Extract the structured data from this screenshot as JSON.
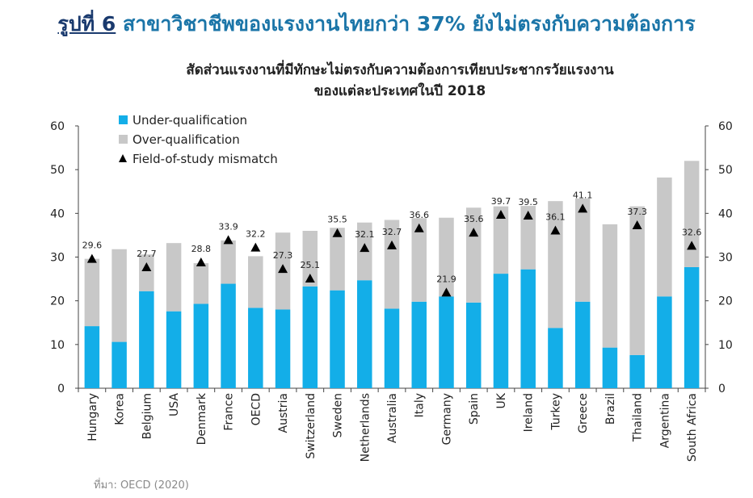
{
  "figure": {
    "label": "รูปที่ 6",
    "title": "สาขาวิชาชีพของแรงงานไทยกว่า 37% ยังไม่ตรงกับความต้องการ",
    "source": "ที่มา: OECD (2020)"
  },
  "chart_data": {
    "type": "bar",
    "stacked": true,
    "title_line1": "สัดส่วนแรงงานที่มีทักษะไม่ตรงกับความต้องการเทียบประชากรวัยแรงงาน",
    "title_line2": "ของแต่ละประเทศในปี 2018",
    "categories": [
      "Hungary",
      "Korea",
      "Belgium",
      "USA",
      "Denmark",
      "France",
      "OECD",
      "Austria",
      "Switzerland",
      "Sweden",
      "Netherlands",
      "Australia",
      "Italy",
      "Germany",
      "Spain",
      "UK",
      "Ireland",
      "Turkey",
      "Greece",
      "Brazil",
      "Thailand",
      "Argentina",
      "South Africa"
    ],
    "series": [
      {
        "name": "Under-qualification",
        "type": "bar",
        "color": "#13aee8",
        "values": [
          14.2,
          10.6,
          22.2,
          17.6,
          19.3,
          23.9,
          18.4,
          18.0,
          23.3,
          22.4,
          24.7,
          18.2,
          19.8,
          21.0,
          19.6,
          26.2,
          27.2,
          13.8,
          19.8,
          9.3,
          7.6,
          21.0,
          27.7
        ]
      },
      {
        "name": "Over-qualification",
        "type": "bar",
        "color": "#c8c8c8",
        "values": [
          15.4,
          21.2,
          8.4,
          15.6,
          9.3,
          9.9,
          11.8,
          17.6,
          12.7,
          14.3,
          13.2,
          20.3,
          19.1,
          18.0,
          21.7,
          15.4,
          14.5,
          29.0,
          23.6,
          28.2,
          34.0,
          27.2,
          24.3
        ]
      },
      {
        "name": "Field-of-study mismatch",
        "type": "scatter",
        "marker": "triangle",
        "values": [
          29.6,
          null,
          27.7,
          null,
          28.8,
          33.9,
          32.2,
          27.3,
          25.1,
          35.5,
          32.1,
          32.7,
          36.6,
          21.9,
          35.6,
          39.7,
          39.5,
          36.1,
          41.1,
          null,
          37.3,
          null,
          32.6
        ]
      }
    ],
    "ylim": [
      0,
      60
    ],
    "yticks": [
      0,
      10,
      20,
      30,
      40,
      50,
      60
    ],
    "ytick_labels": [
      "0",
      "10",
      "20",
      "30",
      "40",
      "50",
      "60"
    ],
    "right_axis": true,
    "legend_position": "top-left",
    "grid": false
  }
}
